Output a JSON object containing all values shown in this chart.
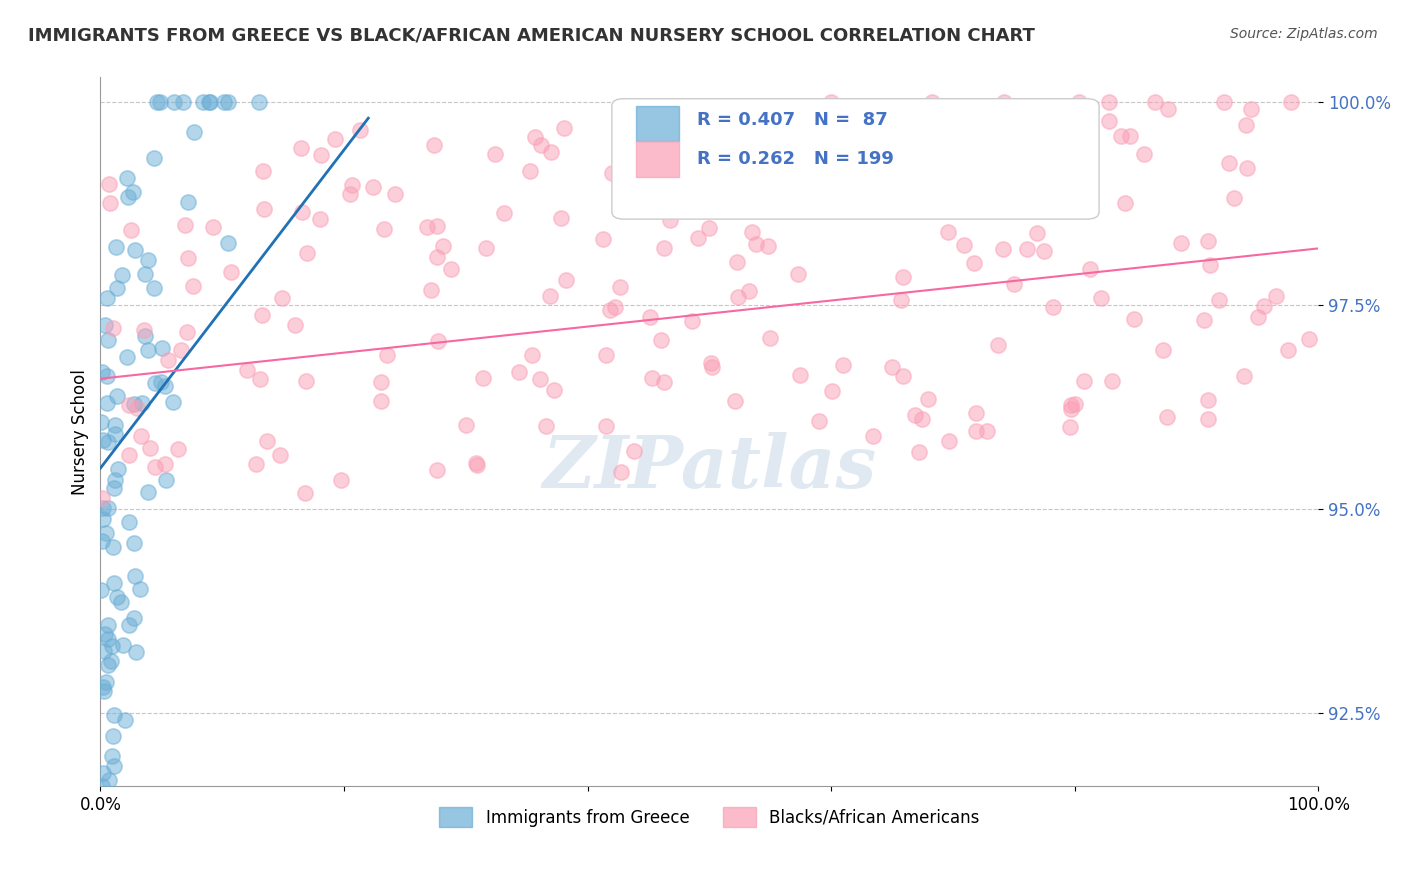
{
  "title": "IMMIGRANTS FROM GREECE VS BLACK/AFRICAN AMERICAN NURSERY SCHOOL CORRELATION CHART",
  "source": "Source: ZipAtlas.com",
  "ylabel": "Nursery School",
  "xlabel": "",
  "watermark": "ZIPatlas",
  "blue_R": 0.407,
  "blue_N": 87,
  "pink_R": 0.262,
  "pink_N": 199,
  "blue_color": "#6baed6",
  "pink_color": "#fa9fb5",
  "blue_line_color": "#2171b5",
  "pink_line_color": "#f768a1",
  "legend1": "Immigrants from Greece",
  "legend2": "Blacks/African Americans",
  "xmin": 0.0,
  "xmax": 1.0,
  "ymin": 0.916,
  "ymax": 1.003,
  "yticks": [
    0.925,
    0.95,
    0.975,
    1.0
  ],
  "ytick_labels": [
    "92.5%",
    "95.0%",
    "97.5%",
    "100.0%"
  ],
  "xticks": [
    0.0,
    0.2,
    0.4,
    0.6,
    0.8,
    1.0
  ],
  "xtick_labels": [
    "0.0%",
    "",
    "",
    "",
    "",
    "100.0%"
  ],
  "blue_seed": 42,
  "pink_seed": 7,
  "background_color": "#ffffff"
}
